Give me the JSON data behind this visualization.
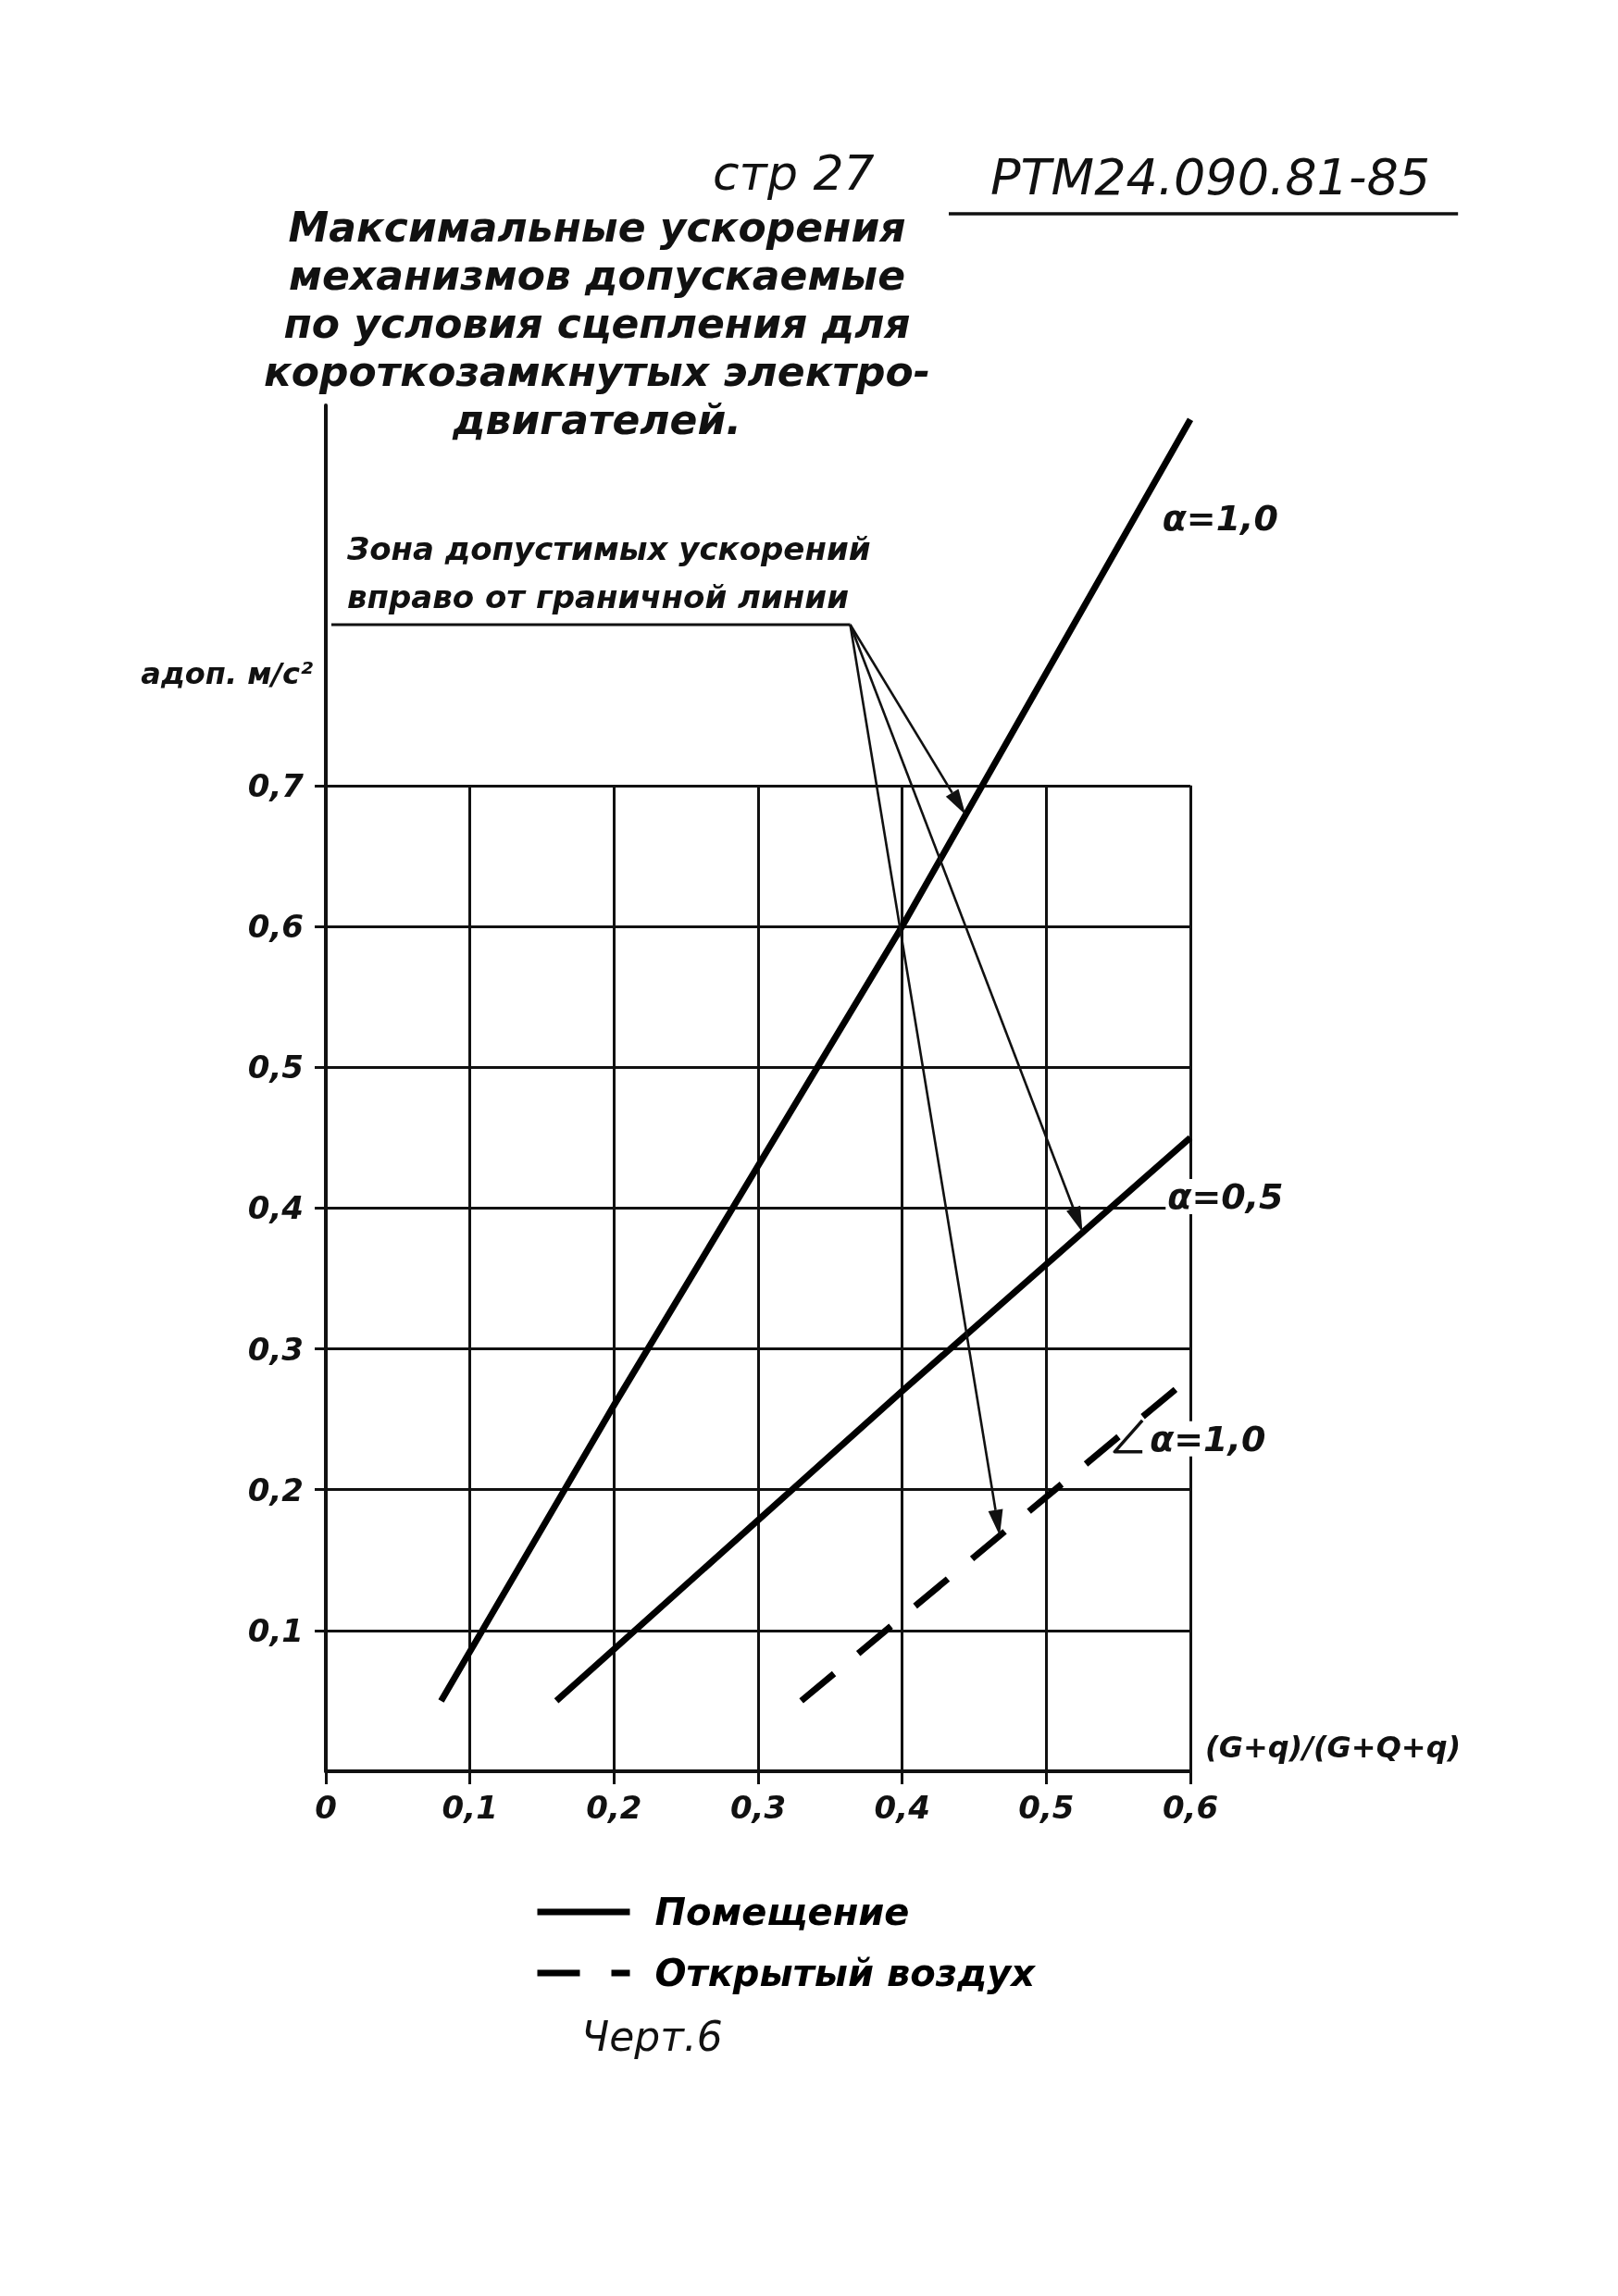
{
  "chart_data": {
    "type": "line",
    "title": "Максимальные ускорения\nмеханизмов допускаемые\nпо условия сцепления для\nкороткозамкнутых электро-\nдвигателей.",
    "xlabel": "(G+q)/(G+Q+q)",
    "ylabel": "aдоп. м/с²",
    "annotations": [
      "стр 27",
      "РТМ24.090.81-85",
      "Зона допустимых ускорений\nвправо от граничной линии",
      "Черт.6",
      {
        "text": "α=1,0",
        "x": 0.56,
        "y": 0.89
      },
      {
        "text": "α=0,5",
        "x": 0.57,
        "y": 0.42
      },
      {
        "text": "α=1,0",
        "x": 0.55,
        "y": 0.24
      }
    ],
    "series": [
      {
        "name": "Помещение",
        "color": "#000000",
        "line_style": "solid",
        "x": [
          0.08,
          0.2,
          0.4,
          0.6,
          null,
          0.16,
          0.4,
          0.6
        ],
        "values": [
          0.05,
          0.26,
          0.6,
          0.96,
          null,
          0.05,
          0.27,
          0.45
        ]
      },
      {
        "name": "Открытый воздух",
        "color": "#000000",
        "line_style": "dashed",
        "x": [
          0.33,
          0.6
        ],
        "values": [
          0.05,
          0.28
        ]
      }
    ],
    "xlim": [
      0,
      0.6
    ],
    "ylim": [
      0,
      0.97
    ],
    "xticks": [
      0,
      {
        "value": 0.1,
        "label": "0,1"
      },
      {
        "value": 0.2,
        "label": "0,2"
      },
      {
        "value": 0.3,
        "label": "0,3"
      },
      {
        "value": 0.4,
        "label": "0,4"
      },
      {
        "value": 0.5,
        "label": "0,5"
      },
      {
        "value": 0.6,
        "label": "0,6"
      }
    ],
    "yticks": [
      {
        "value": 0.1,
        "label": "0,1"
      },
      {
        "value": 0.2,
        "label": "0,2"
      },
      {
        "value": 0.3,
        "label": "0,3"
      },
      {
        "value": 0.4,
        "label": "0,4"
      },
      {
        "value": 0.5,
        "label": "0,5"
      },
      {
        "value": 0.6,
        "label": "0,6"
      },
      {
        "value": 0.7,
        "label": "0,7"
      }
    ],
    "grid": true,
    "legend": "bottom",
    "marker": "none"
  }
}
